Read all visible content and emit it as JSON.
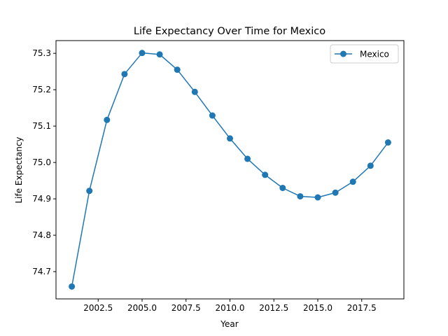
{
  "chart_data": {
    "type": "line",
    "title": "Life Expectancy Over Time for Mexico",
    "xlabel": "Year",
    "ylabel": "Life Expectancy",
    "xlim": [
      2000.1,
      2019.9
    ],
    "ylim": [
      74.625,
      75.335
    ],
    "xticks": [
      2002.5,
      2005.0,
      2007.5,
      2010.0,
      2012.5,
      2015.0,
      2017.5
    ],
    "xtick_labels": [
      "2002.5",
      "2005.0",
      "2007.5",
      "2010.0",
      "2012.5",
      "2015.0",
      "2017.5"
    ],
    "yticks": [
      74.7,
      74.8,
      74.9,
      75.0,
      75.1,
      75.2,
      75.3
    ],
    "ytick_labels": [
      "74.7",
      "74.8",
      "74.9",
      "75.0",
      "75.1",
      "75.2",
      "75.3"
    ],
    "grid": false,
    "legend": "top-right",
    "series": [
      {
        "name": "Mexico",
        "color": "#1f77b4",
        "marker": "circle",
        "x": [
          2001,
          2002,
          2003,
          2004,
          2005,
          2006,
          2007,
          2008,
          2009,
          2010,
          2011,
          2012,
          2013,
          2014,
          2015,
          2016,
          2017,
          2018,
          2019
        ],
        "y": [
          74.659,
          74.922,
          75.117,
          75.243,
          75.301,
          75.297,
          75.255,
          75.194,
          75.129,
          75.066,
          75.01,
          74.966,
          74.93,
          74.907,
          74.904,
          74.917,
          74.947,
          74.991,
          75.055
        ]
      }
    ]
  }
}
